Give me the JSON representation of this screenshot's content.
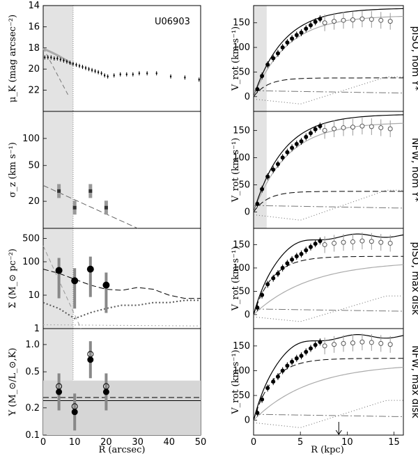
{
  "chart_data": {
    "type": "multi-panel",
    "galaxy": "U06903",
    "left_xlabel": "R (arcsec)",
    "right_xlabel": "R (kpc)",
    "left_xticks": [
      "0",
      "10",
      "20",
      "30",
      "40",
      "50"
    ],
    "right_xticks": [
      "0",
      "5",
      "10",
      "15"
    ],
    "left_panels": [
      {
        "ylabel": "μ_K (mag arcsec⁻²)",
        "ylim": [
          24,
          14
        ],
        "yticks": [
          "14",
          "16",
          "18",
          "20",
          "22"
        ],
        "profile_x": [
          0.5,
          1.5,
          2.5,
          3.5,
          4.5,
          5.5,
          6.5,
          7.5,
          8.5,
          9.5,
          10.5,
          11.5,
          12.5,
          13.5,
          14.5,
          15.5,
          16.5,
          17.5,
          18.5,
          19.5,
          20.5,
          22.5,
          24.5,
          26.5,
          28.5,
          30.5,
          33,
          36,
          40.5,
          45,
          49.5
        ],
        "profile_y": [
          18.9,
          18.9,
          18.9,
          19.0,
          19.0,
          19.1,
          19.2,
          19.3,
          19.4,
          19.5,
          19.6,
          19.7,
          19.8,
          19.9,
          20.0,
          20.1,
          20.2,
          20.3,
          20.4,
          20.6,
          20.7,
          20.6,
          20.5,
          20.5,
          20.5,
          20.4,
          20.4,
          20.4,
          20.7,
          20.8,
          21.0
        ]
      },
      {
        "ylabel": "σ_z (km s⁻¹)",
        "ylim": [
          10,
          200
        ],
        "yticks": [
          "20",
          "50",
          "100"
        ],
        "points_x": [
          5,
          10,
          15,
          20
        ],
        "points_y": [
          26,
          17,
          26,
          17
        ]
      },
      {
        "ylabel": "Σ (M_⊙ pc⁻²)",
        "ylim": [
          1,
          1000
        ],
        "yticks": [
          "1",
          "10",
          "100",
          "500"
        ],
        "points_x": [
          5,
          10,
          15,
          20
        ],
        "points_y": [
          55,
          27,
          60,
          20
        ]
      },
      {
        "ylabel": "Υ (M_⊙/L_⊙,K)",
        "ylim": [
          0.1,
          1.5
        ],
        "yticks": [
          "0.1",
          "0.2",
          "0.5",
          "1.0"
        ],
        "points_x": [
          5,
          10,
          15,
          20
        ],
        "points_y": [
          0.3,
          0.18,
          0.68,
          0.3
        ]
      }
    ],
    "right_panels": [
      {
        "label": "pISO, nom Υ*",
        "ylabel": "V_rot (km s⁻¹)",
        "ylim": [
          -30,
          185
        ],
        "yticks": [
          "0",
          "50",
          "100",
          "150"
        ]
      },
      {
        "label": "NFW, nom Υ*",
        "ylabel": "V_rot (km s⁻¹)",
        "ylim": [
          -30,
          185
        ],
        "yticks": [
          "0",
          "50",
          "100",
          "150"
        ]
      },
      {
        "label": "pISO, max disk",
        "ylabel": "V_rot (km s⁻¹)",
        "ylim": [
          -30,
          185
        ],
        "yticks": [
          "0",
          "50",
          "100",
          "150"
        ]
      },
      {
        "label": "NFW, max disk",
        "ylabel": "V_rot (km s⁻¹)",
        "ylim": [
          -30,
          185
        ],
        "yticks": [
          "0",
          "50",
          "100",
          "150"
        ]
      }
    ],
    "rotation_curve": {
      "filled_x": [
        0.4,
        0.9,
        1.5,
        2.1,
        2.6,
        3.1,
        3.6,
        4.1,
        4.6,
        5.1,
        5.6,
        6.1,
        6.6,
        7.1
      ],
      "filled_y": [
        15,
        42,
        65,
        78,
        88,
        100,
        110,
        118,
        125,
        130,
        138,
        145,
        152,
        158
      ],
      "open_x": [
        7.6,
        8.6,
        9.6,
        10.6,
        11.6,
        12.6,
        13.6,
        14.6
      ],
      "open_y": [
        150,
        153,
        155,
        156,
        158,
        157,
        155,
        153
      ]
    }
  }
}
